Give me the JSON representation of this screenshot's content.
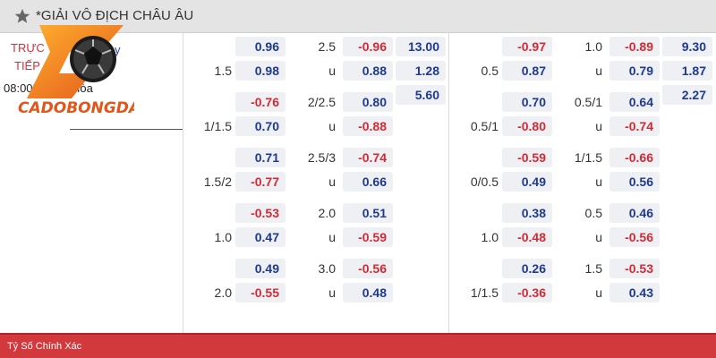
{
  "header": {
    "title": "*GIẢI VÔ ĐỊCH CHÂU ÂU"
  },
  "match": {
    "live_line1": "TRỰC",
    "live_line2": "TIẾP",
    "time": "08:00PM",
    "team_suffix": "y",
    "draw_label": "Hòa"
  },
  "logo": {
    "text": "CADOBONGDA"
  },
  "market_left": {
    "rows": [
      {
        "a_top": "0.96",
        "a_top_sign": "pos",
        "a_bot": "0.98",
        "a_bot_sign": "pos",
        "label_bot": "1.5",
        "label_top2": "2.5",
        "b_top": "-0.96",
        "b_top_sign": "neg",
        "b_bot": "0.88",
        "b_bot_sign": "pos",
        "label_bot2": "u",
        "c1": "13.00",
        "c2": "1.28",
        "c3": "5.60"
      },
      {
        "a_top": "-0.76",
        "a_top_sign": "neg",
        "a_bot": "0.70",
        "a_bot_sign": "pos",
        "label_bot": "1/1.5",
        "label_top2": "2/2.5",
        "b_top": "0.80",
        "b_top_sign": "pos",
        "b_bot": "-0.88",
        "b_bot_sign": "neg",
        "label_bot2": "u"
      },
      {
        "a_top": "0.71",
        "a_top_sign": "pos",
        "a_bot": "-0.77",
        "a_bot_sign": "neg",
        "label_bot": "1.5/2",
        "label_top2": "2.5/3",
        "b_top": "-0.74",
        "b_top_sign": "neg",
        "b_bot": "0.66",
        "b_bot_sign": "pos",
        "label_bot2": "u"
      },
      {
        "a_top": "-0.53",
        "a_top_sign": "neg",
        "a_bot": "0.47",
        "a_bot_sign": "pos",
        "label_bot": "1.0",
        "label_top2": "2.0",
        "b_top": "0.51",
        "b_top_sign": "pos",
        "b_bot": "-0.59",
        "b_bot_sign": "neg",
        "label_bot2": "u"
      },
      {
        "a_top": "0.49",
        "a_top_sign": "pos",
        "a_bot": "-0.55",
        "a_bot_sign": "neg",
        "label_bot": "2.0",
        "label_top2": "3.0",
        "b_top": "-0.56",
        "b_top_sign": "neg",
        "b_bot": "0.48",
        "b_bot_sign": "pos",
        "label_bot2": "u"
      }
    ]
  },
  "market_right": {
    "rows": [
      {
        "a_top": "-0.97",
        "a_top_sign": "neg",
        "a_bot": "0.87",
        "a_bot_sign": "pos",
        "label_bot": "0.5",
        "label_top2": "1.0",
        "b_top": "-0.89",
        "b_top_sign": "neg",
        "b_bot": "0.79",
        "b_bot_sign": "pos",
        "label_bot2": "u",
        "c1": "9.30",
        "c2": "1.87",
        "c3": "2.27"
      },
      {
        "a_top": "0.70",
        "a_top_sign": "pos",
        "a_bot": "-0.80",
        "a_bot_sign": "neg",
        "label_bot": "0.5/1",
        "label_top2": "0.5/1",
        "b_top": "0.64",
        "b_top_sign": "pos",
        "b_bot": "-0.74",
        "b_bot_sign": "neg",
        "label_bot2": "u"
      },
      {
        "a_top": "-0.59",
        "a_top_sign": "neg",
        "a_bot": "0.49",
        "a_bot_sign": "pos",
        "label_bot": "0/0.5",
        "label_top2": "1/1.5",
        "b_top": "-0.66",
        "b_top_sign": "neg",
        "b_bot": "0.56",
        "b_bot_sign": "pos",
        "label_bot2": "u"
      },
      {
        "a_top": "0.38",
        "a_top_sign": "pos",
        "a_bot": "-0.48",
        "a_bot_sign": "neg",
        "label_bot": "1.0",
        "label_top2": "0.5",
        "b_top": "0.46",
        "b_top_sign": "pos",
        "b_bot": "-0.56",
        "b_bot_sign": "neg",
        "label_bot2": "u"
      },
      {
        "a_top": "0.26",
        "a_top_sign": "pos",
        "a_bot": "-0.36",
        "a_bot_sign": "neg",
        "label_bot": "1/1.5",
        "label_top2": "1.5",
        "b_top": "-0.53",
        "b_top_sign": "neg",
        "b_bot": "0.43",
        "b_bot_sign": "pos",
        "label_bot2": "u"
      }
    ]
  },
  "footer": {
    "label": "Tỷ Số Chính Xác"
  },
  "colors": {
    "positive": "#1f3a8f",
    "negative": "#d22b36",
    "footer_bg": "#d2393d",
    "header_bg": "#e4e4e4"
  }
}
